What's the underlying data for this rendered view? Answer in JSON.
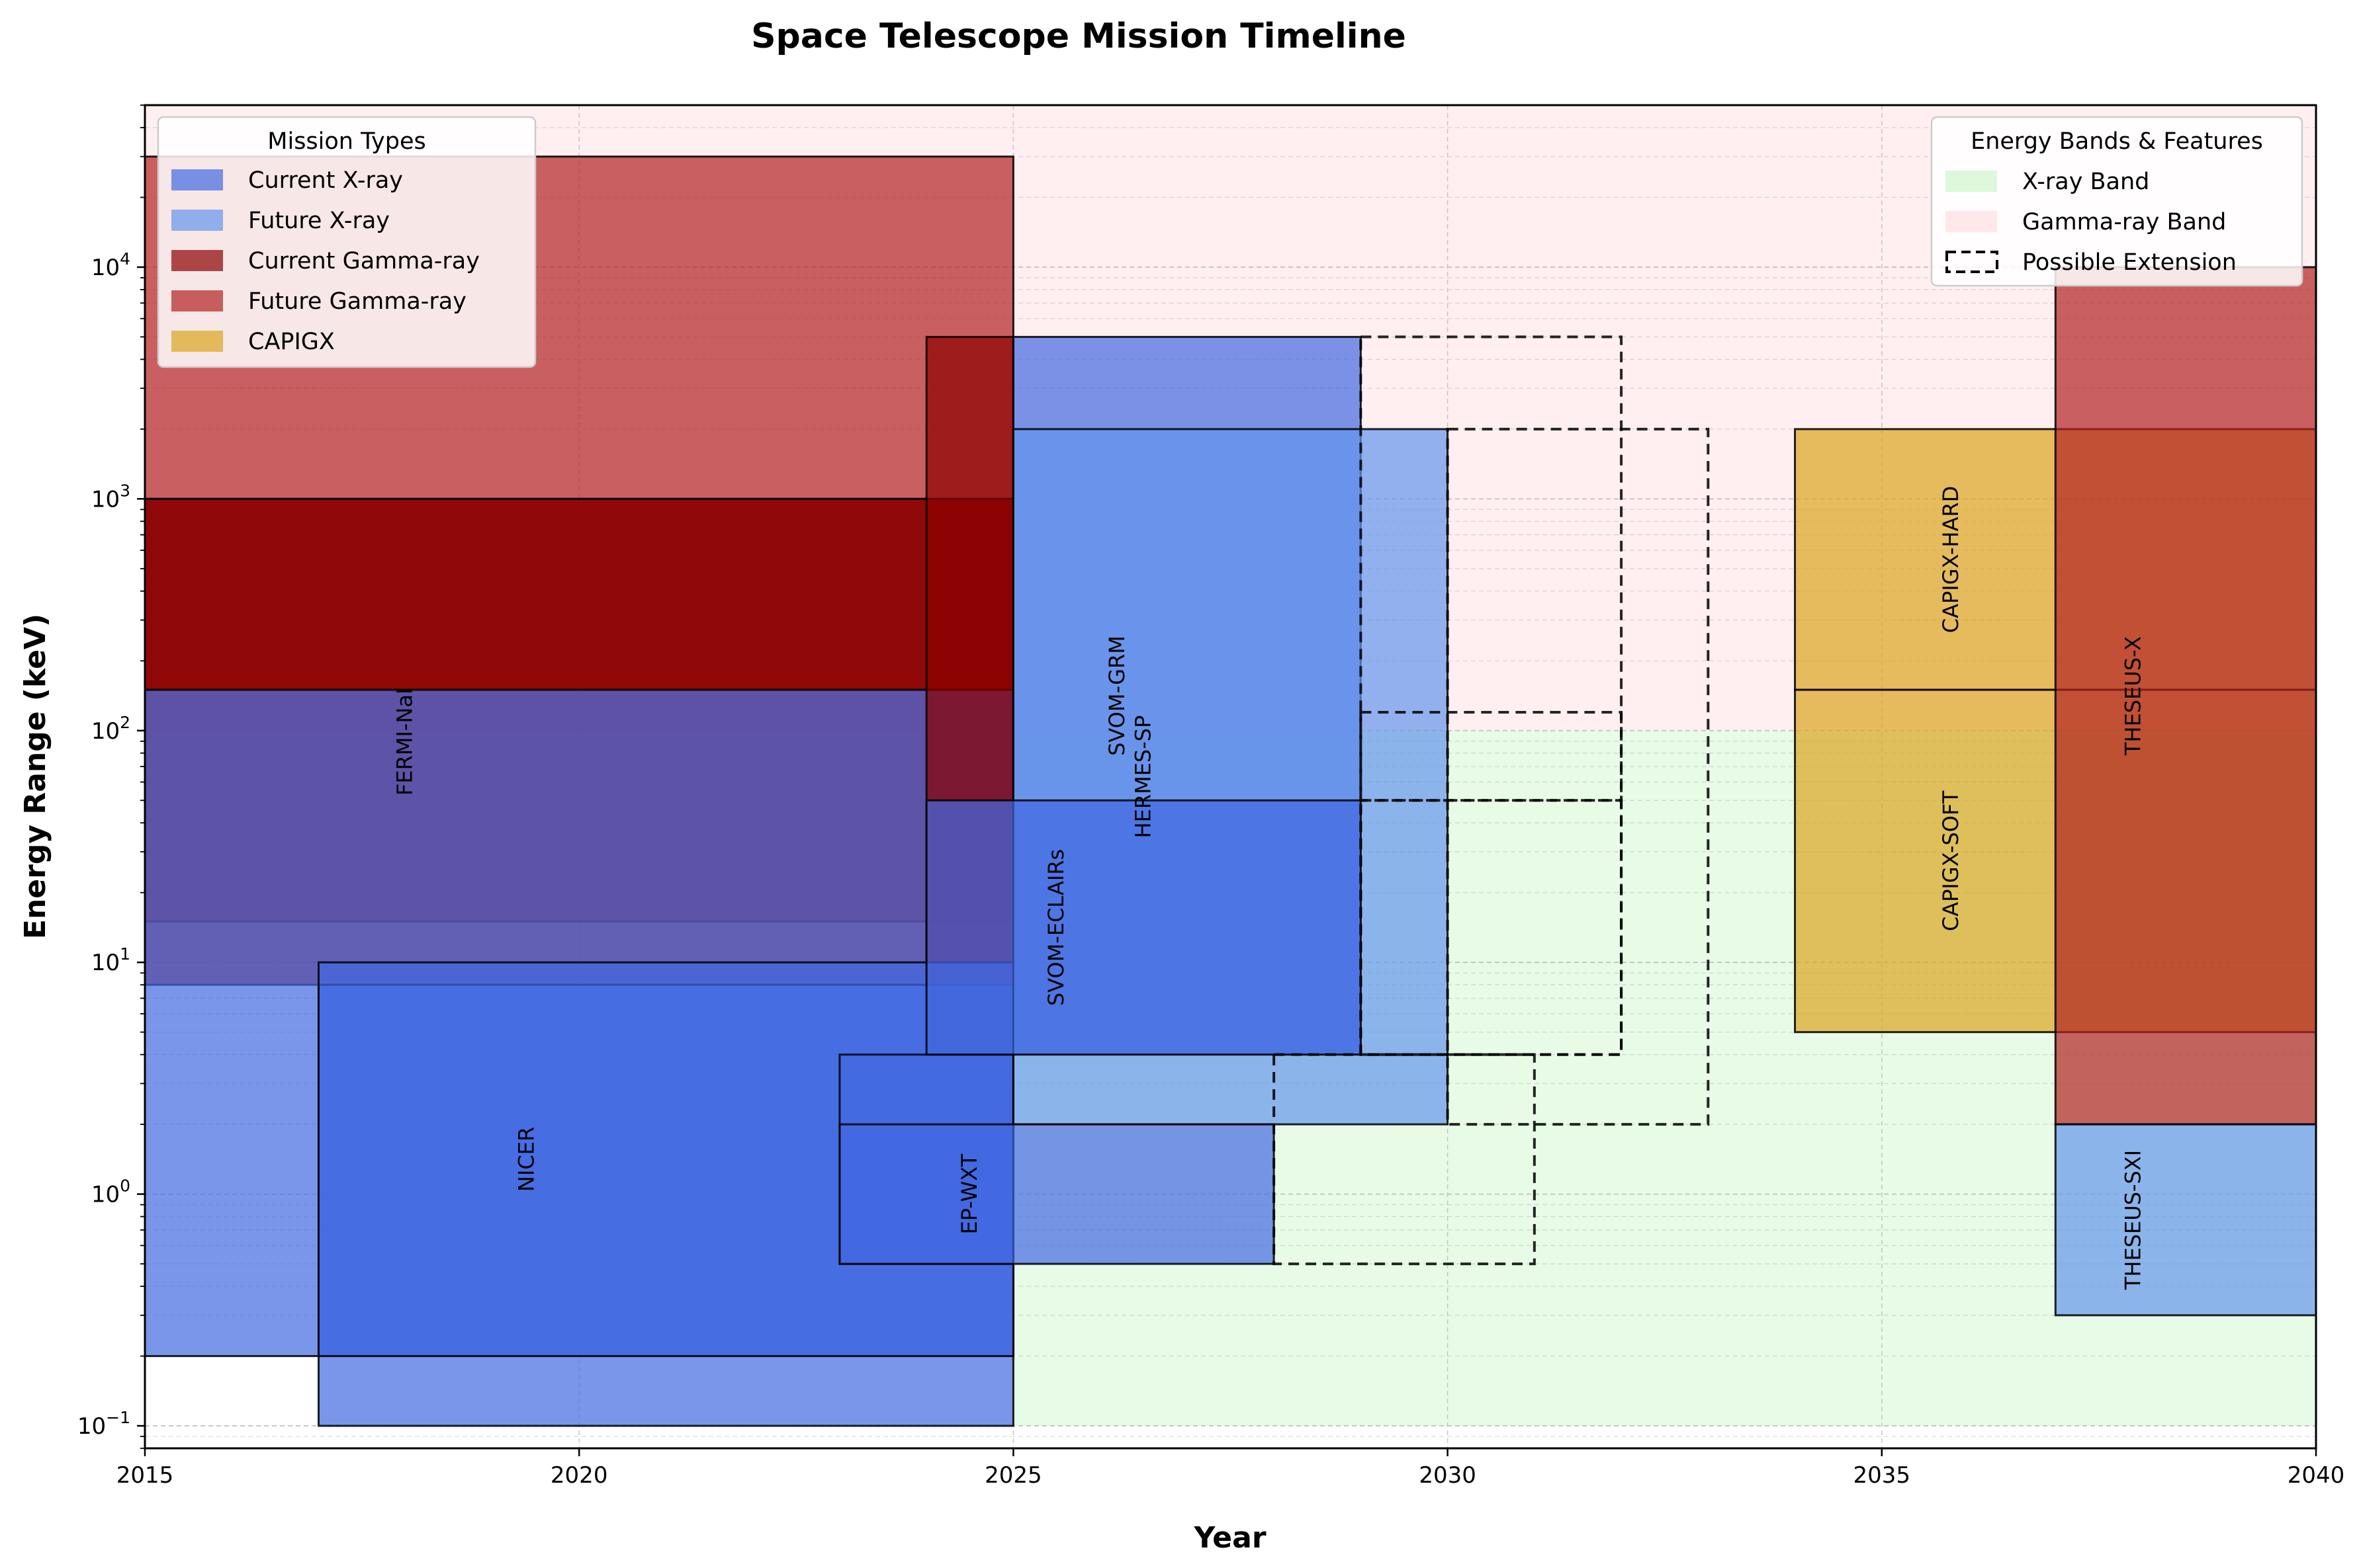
{
  "chart_data": {
    "type": "timeline",
    "title": "Space Telescope Mission Timeline",
    "xlabel": "Year",
    "ylabel": "Energy Range (keV)",
    "xlim": [
      2015,
      2040
    ],
    "ylim": [
      0.08,
      50000
    ],
    "y_scale": "log",
    "x_ticks": [
      2015,
      2020,
      2025,
      2030,
      2035,
      2040
    ],
    "y_ticks": [
      {
        "value": 0.1,
        "base": "10",
        "exp": "−1"
      },
      {
        "value": 1,
        "base": "10",
        "exp": "0"
      },
      {
        "value": 10,
        "base": "10",
        "exp": "1"
      },
      {
        "value": 100,
        "base": "10",
        "exp": "2"
      },
      {
        "value": 1000,
        "base": "10",
        "exp": "3"
      },
      {
        "value": 10000,
        "base": "10",
        "exp": "4"
      }
    ],
    "grid": true,
    "colors": {
      "current_xray": "#4169E1",
      "future_xray": "#6495ED",
      "current_gamma": "#8B0000",
      "future_gamma": "#B22222",
      "capigx": "#DAA520",
      "xray_band": "#90EE90",
      "gamma_band": "#FFB6C1"
    },
    "bands": [
      {
        "name": "X-ray Band",
        "y0": 0.1,
        "y1": 100,
        "x0": 2025,
        "x1": 2040,
        "color": "#90EE90",
        "alpha": 0.22
      },
      {
        "name": "Gamma-ray Band",
        "y0": 100,
        "y1": 50000,
        "x0": 2015,
        "x1": 2040,
        "color": "#FFB6C1",
        "alpha": 0.22
      }
    ],
    "missions": [
      {
        "label": "",
        "category": "future_gamma",
        "x0": 2015,
        "x1": 2025,
        "y0": 15,
        "y1": 30000
      },
      {
        "label": "FERMI-NaI",
        "category": "current_gamma",
        "x0": 2015,
        "x1": 2025,
        "y0": 8,
        "y1": 1000
      },
      {
        "label": "",
        "category": "current_gamma",
        "x0": 2015,
        "x1": 2025,
        "y0": 150,
        "y1": 1000
      },
      {
        "label": "",
        "category": "current_xray",
        "x0": 2015,
        "x1": 2025,
        "y0": 0.2,
        "y1": 150
      },
      {
        "label": "",
        "category": "current_gamma",
        "x0": 2024,
        "x1": 2025,
        "y0": 4,
        "y1": 5000
      },
      {
        "label": "",
        "category": "current_xray",
        "x0": 2017,
        "x1": 2025,
        "y0": 0.1,
        "y1": 8
      },
      {
        "label": "NICER",
        "category": "current_xray",
        "x0": 2017,
        "x1": 2025,
        "y0": 0.2,
        "y1": 10
      },
      {
        "label": "",
        "category": "current_xray",
        "x0": 2023,
        "x1": 2025,
        "y0": 0.5,
        "y1": 4
      },
      {
        "label": "SVOM-GRM",
        "category": "current_xray",
        "x0": 2025,
        "x1": 2029,
        "y0": 4,
        "y1": 5000
      },
      {
        "label": "HERMES-SP",
        "category": "future_xray",
        "x0": 2025,
        "x1": 2030,
        "y0": 2,
        "y1": 2000
      },
      {
        "label": "SVOM-ECLAIRs",
        "category": "current_xray",
        "x0": 2024,
        "x1": 2029,
        "y0": 4,
        "y1": 50
      },
      {
        "label": "EP-WXT",
        "category": "current_xray",
        "x0": 2023,
        "x1": 2028,
        "y0": 0.5,
        "y1": 2
      },
      {
        "label": "CAPIGX-HARD",
        "category": "capigx",
        "x0": 2034,
        "x1": 2040,
        "y0": 150,
        "y1": 2000
      },
      {
        "label": "CAPIGX-SOFT",
        "category": "capigx",
        "x0": 2034,
        "x1": 2040,
        "y0": 5,
        "y1": 150
      },
      {
        "label": "THESEUS-X",
        "category": "future_gamma",
        "x0": 2037,
        "x1": 2040,
        "y0": 2,
        "y1": 10000
      },
      {
        "label": "THESEUS-SXI",
        "category": "future_xray",
        "x0": 2037,
        "x1": 2040,
        "y0": 0.3,
        "y1": 2
      }
    ],
    "extensions": [
      {
        "x0": 2029,
        "x1": 2032,
        "y0": 4,
        "y1": 5000
      },
      {
        "x0": 2030,
        "x1": 2033,
        "y0": 2,
        "y1": 2000
      },
      {
        "x0": 2029,
        "x1": 2032,
        "y0": 4,
        "y1": 50
      },
      {
        "x0": 2028,
        "x1": 2031,
        "y0": 0.5,
        "y1": 4
      },
      {
        "x0": 2029,
        "x1": 2032,
        "y0": 50,
        "y1": 120
      }
    ],
    "legend_missions": {
      "title": "Mission Types",
      "placement": "top-left",
      "items": [
        {
          "label": "Current X-ray",
          "color": "#4169E1",
          "alpha": 0.7
        },
        {
          "label": "Future X-ray",
          "color": "#6495ED",
          "alpha": 0.7
        },
        {
          "label": "Current Gamma-ray",
          "color": "#8B0000",
          "alpha": 0.7
        },
        {
          "label": "Future Gamma-ray",
          "color": "#B22222",
          "alpha": 0.7
        },
        {
          "label": "CAPIGX",
          "color": "#DAA520",
          "alpha": 0.7
        }
      ]
    },
    "legend_bands": {
      "title": "Energy Bands & Features",
      "placement": "top-right",
      "items": [
        {
          "label": "X-ray Band",
          "color": "#90EE90",
          "alpha": 0.3,
          "dashed": false
        },
        {
          "label": "Gamma-ray Band",
          "color": "#FFB6C1",
          "alpha": 0.3,
          "dashed": false
        },
        {
          "label": "Possible Extension",
          "color": "none",
          "alpha": 1,
          "dashed": true
        }
      ]
    }
  }
}
